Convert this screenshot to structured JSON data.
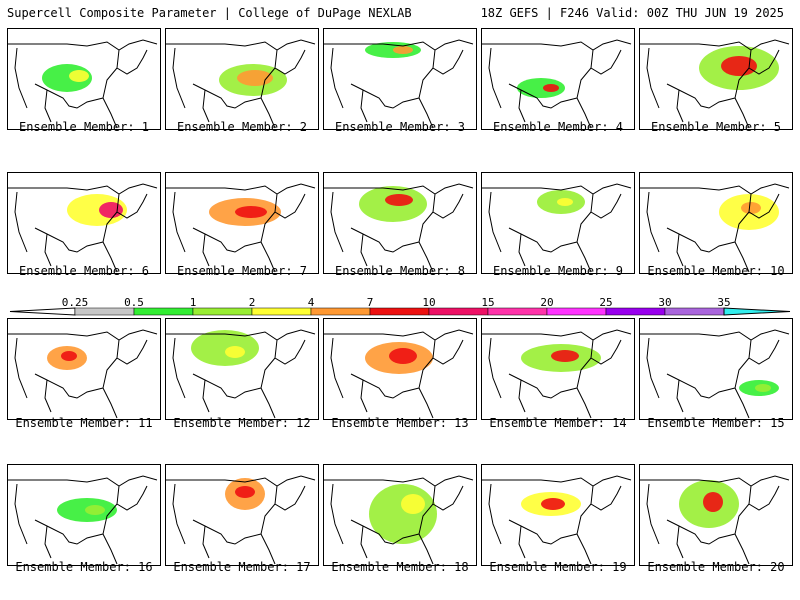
{
  "header": {
    "title": "Supercell Composite Parameter | College of DuPage NEXLAB",
    "run_info": "18Z GEFS | F246 Valid: 00Z THU JUN 19 2025"
  },
  "members": [
    {
      "label": "Ensemble Member: 1"
    },
    {
      "label": "Ensemble Member: 2"
    },
    {
      "label": "Ensemble Member: 3"
    },
    {
      "label": "Ensemble Member: 4"
    },
    {
      "label": "Ensemble Member: 5"
    },
    {
      "label": "Ensemble Member: 6"
    },
    {
      "label": "Ensemble Member: 7"
    },
    {
      "label": "Ensemble Member: 8"
    },
    {
      "label": "Ensemble Member: 9"
    },
    {
      "label": "Ensemble Member: 10"
    },
    {
      "label": "Ensemble Member: 11"
    },
    {
      "label": "Ensemble Member: 12"
    },
    {
      "label": "Ensemble Member: 13"
    },
    {
      "label": "Ensemble Member: 14"
    },
    {
      "label": "Ensemble Member: 15"
    },
    {
      "label": "Ensemble Member: 16"
    },
    {
      "label": "Ensemble Member: 17"
    },
    {
      "label": "Ensemble Member: 18"
    },
    {
      "label": "Ensemble Member: 19"
    },
    {
      "label": "Ensemble Member: 20"
    }
  ],
  "colorbar": {
    "thresholds": [
      "0.25",
      "0.5",
      "1",
      "2",
      "4",
      "7",
      "10",
      "15",
      "20",
      "25",
      "30",
      "35"
    ],
    "colors": [
      "#c8c8c8",
      "#33ee33",
      "#99ee33",
      "#ffff33",
      "#ff9933",
      "#ee1111",
      "#ee1166",
      "#ff33aa",
      "#ff33ff",
      "#9900ee",
      "#aa66dd",
      "#33eeee"
    ]
  }
}
